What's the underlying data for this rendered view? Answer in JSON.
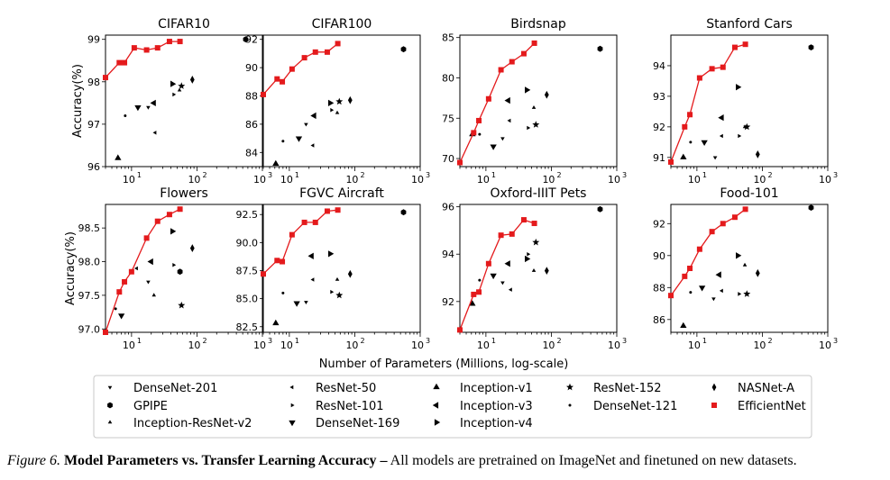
{
  "figure": {
    "ylabel": "Accuracy(%)",
    "xlabel": "Number of Parameters (Millions, log-scale)",
    "x_ticks": [
      "10",
      "10",
      "10"
    ],
    "x_tick_exponents": [
      "1",
      "2",
      "3"
    ],
    "colors": {
      "efficientnet": "#e41a1c",
      "others": "#000000"
    }
  },
  "caption": {
    "label": "Figure 6.",
    "title": "Model Parameters vs. Transfer Learning Accuracy –",
    "text": "All models are pretrained on ImageNet and finetuned on new datasets."
  },
  "legend": [
    {
      "name": "DenseNet-201",
      "marker": "tri-down-small"
    },
    {
      "name": "ResNet-50",
      "marker": "tri-left-small"
    },
    {
      "name": "Inception-v1",
      "marker": "tri-up"
    },
    {
      "name": "ResNet-152",
      "marker": "star"
    },
    {
      "name": "NASNet-A",
      "marker": "diamond-thin"
    },
    {
      "name": "GPIPE",
      "marker": "hexagon"
    },
    {
      "name": "ResNet-101",
      "marker": "tri-right-small"
    },
    {
      "name": "Inception-v3",
      "marker": "tri-left"
    },
    {
      "name": "DenseNet-121",
      "marker": "dot"
    },
    {
      "name": "EfficientNet",
      "marker": "square"
    },
    {
      "name": "Inception-ResNet-v2",
      "marker": "tri-up-small"
    },
    {
      "name": "DenseNet-169",
      "marker": "tri-down"
    },
    {
      "name": "Inception-v4",
      "marker": "tri-right"
    }
  ],
  "chart_data": [
    {
      "type": "scatter",
      "title": "CIFAR10",
      "xscale": "log",
      "xlim": [
        4,
        1000
      ],
      "ylim": [
        96,
        99.1
      ],
      "yticks": [
        {
          "v": 96,
          "label": "96"
        },
        {
          "v": 97,
          "label": "97"
        },
        {
          "v": 98,
          "label": "98"
        },
        {
          "v": 99,
          "label": "99"
        }
      ],
      "efficientnet": [
        [
          4,
          98.1
        ],
        [
          6.5,
          98.45
        ],
        [
          7.8,
          98.45
        ],
        [
          11,
          98.8
        ],
        [
          17,
          98.75
        ],
        [
          25,
          98.8
        ],
        [
          38,
          98.95
        ],
        [
          55,
          98.95
        ]
      ],
      "points": [
        {
          "model": "GPIPE",
          "x": 556,
          "y": 99.0
        },
        {
          "model": "NASNet-A",
          "x": 85,
          "y": 98.05
        },
        {
          "model": "ResNet-152",
          "x": 58,
          "y": 97.9
        },
        {
          "model": "Inception-v4",
          "x": 42,
          "y": 97.95
        },
        {
          "model": "Inception-v3",
          "x": 22,
          "y": 97.5
        },
        {
          "model": "DenseNet-169",
          "x": 12.5,
          "y": 97.4
        },
        {
          "model": "ResNet-101",
          "x": 44,
          "y": 97.7
        },
        {
          "model": "Inception-ResNet-v2",
          "x": 54,
          "y": 97.8
        },
        {
          "model": "DenseNet-121",
          "x": 8,
          "y": 97.2
        },
        {
          "model": "ResNet-50",
          "x": 23,
          "y": 96.8
        },
        {
          "model": "DenseNet-201",
          "x": 18,
          "y": 97.4
        },
        {
          "model": "Inception-v1",
          "x": 6.2,
          "y": 96.2
        }
      ]
    },
    {
      "type": "scatter",
      "title": "CIFAR100",
      "xscale": "log",
      "xlim": [
        4,
        1000
      ],
      "ylim": [
        83,
        92.3
      ],
      "yticks": [
        {
          "v": 84,
          "label": "84"
        },
        {
          "v": 86,
          "label": "86"
        },
        {
          "v": 88,
          "label": "88"
        },
        {
          "v": 90,
          "label": "90"
        },
        {
          "v": 92,
          "label": "92"
        }
      ],
      "efficientnet": [
        [
          4,
          88.1
        ],
        [
          6.5,
          89.2
        ],
        [
          7.8,
          89.0
        ],
        [
          11,
          89.9
        ],
        [
          17,
          90.7
        ],
        [
          25,
          91.1
        ],
        [
          38,
          91.1
        ],
        [
          55,
          91.7
        ]
      ],
      "points": [
        {
          "model": "GPIPE",
          "x": 556,
          "y": 91.3
        },
        {
          "model": "NASNet-A",
          "x": 85,
          "y": 87.7
        },
        {
          "model": "ResNet-152",
          "x": 58,
          "y": 87.6
        },
        {
          "model": "Inception-v4",
          "x": 42,
          "y": 87.5
        },
        {
          "model": "Inception-v3",
          "x": 24,
          "y": 86.6
        },
        {
          "model": "DenseNet-169",
          "x": 14,
          "y": 85.0
        },
        {
          "model": "ResNet-101",
          "x": 44,
          "y": 87.0
        },
        {
          "model": "Inception-ResNet-v2",
          "x": 54,
          "y": 86.8
        },
        {
          "model": "DenseNet-121",
          "x": 8,
          "y": 84.8
        },
        {
          "model": "ResNet-50",
          "x": 23,
          "y": 84.5
        },
        {
          "model": "DenseNet-201",
          "x": 18,
          "y": 86.0
        },
        {
          "model": "Inception-v1",
          "x": 6.2,
          "y": 83.2
        }
      ]
    },
    {
      "type": "scatter",
      "title": "Birdsnap",
      "xscale": "log",
      "xlim": [
        4,
        1000
      ],
      "ylim": [
        69,
        85.3
      ],
      "yticks": [
        {
          "v": 70,
          "label": "70"
        },
        {
          "v": 75,
          "label": "75"
        },
        {
          "v": 80,
          "label": "80"
        },
        {
          "v": 85,
          "label": "85"
        }
      ],
      "efficientnet": [
        [
          4,
          69.5
        ],
        [
          6.5,
          73.2
        ],
        [
          7.8,
          74.7
        ],
        [
          11,
          77.4
        ],
        [
          17,
          81.0
        ],
        [
          25,
          82.0
        ],
        [
          38,
          83.0
        ],
        [
          55,
          84.3
        ]
      ],
      "points": [
        {
          "model": "GPIPE",
          "x": 556,
          "y": 83.6
        },
        {
          "model": "NASNet-A",
          "x": 85,
          "y": 77.9
        },
        {
          "model": "ResNet-152",
          "x": 58,
          "y": 74.2
        },
        {
          "model": "Inception-v4",
          "x": 42,
          "y": 78.5
        },
        {
          "model": "Inception-v3",
          "x": 22,
          "y": 77.2
        },
        {
          "model": "DenseNet-169",
          "x": 13,
          "y": 71.5
        },
        {
          "model": "ResNet-101",
          "x": 44,
          "y": 73.8
        },
        {
          "model": "Inception-ResNet-v2",
          "x": 54,
          "y": 76.3
        },
        {
          "model": "DenseNet-121",
          "x": 8,
          "y": 73.0
        },
        {
          "model": "ResNet-50",
          "x": 23,
          "y": 74.7
        },
        {
          "model": "DenseNet-201",
          "x": 18,
          "y": 72.5
        },
        {
          "model": "Inception-v1",
          "x": 6.2,
          "y": 73.0
        }
      ]
    },
    {
      "type": "scatter",
      "title": "Stanford Cars",
      "xscale": "log",
      "xlim": [
        4,
        1000
      ],
      "ylim": [
        90.7,
        95.0
      ],
      "yticks": [
        {
          "v": 91,
          "label": "91"
        },
        {
          "v": 92,
          "label": "92"
        },
        {
          "v": 93,
          "label": "93"
        },
        {
          "v": 94,
          "label": "94"
        }
      ],
      "efficientnet": [
        [
          4,
          90.85
        ],
        [
          6.5,
          92.0
        ],
        [
          7.8,
          92.4
        ],
        [
          11,
          93.6
        ],
        [
          17,
          93.9
        ],
        [
          25,
          93.95
        ],
        [
          38,
          94.6
        ],
        [
          55,
          94.7
        ]
      ],
      "points": [
        {
          "model": "GPIPE",
          "x": 556,
          "y": 94.6
        },
        {
          "model": "NASNet-A",
          "x": 85,
          "y": 91.1
        },
        {
          "model": "ResNet-152",
          "x": 58,
          "y": 92.0
        },
        {
          "model": "Inception-v4",
          "x": 42,
          "y": 93.3
        },
        {
          "model": "Inception-v3",
          "x": 24,
          "y": 92.3
        },
        {
          "model": "DenseNet-169",
          "x": 13,
          "y": 91.5
        },
        {
          "model": "ResNet-101",
          "x": 44,
          "y": 91.7
        },
        {
          "model": "Inception-ResNet-v2",
          "x": 54,
          "y": 92.0
        },
        {
          "model": "DenseNet-121",
          "x": 8,
          "y": 91.5
        },
        {
          "model": "ResNet-50",
          "x": 24,
          "y": 91.7
        },
        {
          "model": "DenseNet-201",
          "x": 19,
          "y": 91.0
        },
        {
          "model": "Inception-v1",
          "x": 6.2,
          "y": 91.0
        }
      ]
    },
    {
      "type": "scatter",
      "title": "Flowers",
      "xscale": "log",
      "xlim": [
        4,
        1000
      ],
      "ylim": [
        96.95,
        98.85
      ],
      "yticks": [
        {
          "v": 97.0,
          "label": "97.0"
        },
        {
          "v": 97.5,
          "label": "97.5"
        },
        {
          "v": 98.0,
          "label": "98.0"
        },
        {
          "v": 98.5,
          "label": "98.5"
        }
      ],
      "efficientnet": [
        [
          4,
          96.95
        ],
        [
          6.5,
          97.55
        ],
        [
          7.8,
          97.7
        ],
        [
          10,
          97.85
        ],
        [
          17,
          98.35
        ],
        [
          25,
          98.6
        ],
        [
          38,
          98.7
        ],
        [
          55,
          98.78
        ]
      ],
      "points": [
        {
          "model": "NASNet-A",
          "x": 85,
          "y": 98.2
        },
        {
          "model": "Inception-v4",
          "x": 42,
          "y": 98.45
        },
        {
          "model": "Inception-v3",
          "x": 20,
          "y": 98.0
        },
        {
          "model": "GPIPE",
          "x": 55,
          "y": 97.85
        },
        {
          "model": "DenseNet-169",
          "x": 7,
          "y": 97.2
        },
        {
          "model": "ResNet-101",
          "x": 44,
          "y": 97.95
        },
        {
          "model": "ResNet-152",
          "x": 58,
          "y": 97.35
        },
        {
          "model": "DenseNet-121",
          "x": 5.7,
          "y": 97.3
        },
        {
          "model": "ResNet-50",
          "x": 12,
          "y": 97.9
        },
        {
          "model": "Inception-ResNet-v2",
          "x": 22,
          "y": 97.5
        },
        {
          "model": "DenseNet-201",
          "x": 18,
          "y": 97.7
        }
      ]
    },
    {
      "type": "scatter",
      "title": "FGVC Aircraft",
      "xscale": "log",
      "xlim": [
        4,
        1000
      ],
      "ylim": [
        82.0,
        93.4
      ],
      "yticks": [
        {
          "v": 82.5,
          "label": "82.5"
        },
        {
          "v": 85.0,
          "label": "85.0"
        },
        {
          "v": 87.5,
          "label": "87.5"
        },
        {
          "v": 90.0,
          "label": "90.0"
        },
        {
          "v": 92.5,
          "label": "92.5"
        }
      ],
      "efficientnet": [
        [
          4,
          87.2
        ],
        [
          6.5,
          88.4
        ],
        [
          7.8,
          88.3
        ],
        [
          11,
          90.7
        ],
        [
          17,
          91.8
        ],
        [
          25,
          91.8
        ],
        [
          38,
          92.8
        ],
        [
          55,
          92.9
        ]
      ],
      "points": [
        {
          "model": "GPIPE",
          "x": 556,
          "y": 92.7
        },
        {
          "model": "NASNet-A",
          "x": 85,
          "y": 87.2
        },
        {
          "model": "ResNet-152",
          "x": 58,
          "y": 85.3
        },
        {
          "model": "Inception-v4",
          "x": 42,
          "y": 89.0
        },
        {
          "model": "Inception-v3",
          "x": 22,
          "y": 88.8
        },
        {
          "model": "DenseNet-169",
          "x": 13,
          "y": 84.6
        },
        {
          "model": "ResNet-101",
          "x": 44,
          "y": 85.6
        },
        {
          "model": "Inception-ResNet-v2",
          "x": 54,
          "y": 86.7
        },
        {
          "model": "DenseNet-121",
          "x": 8,
          "y": 85.5
        },
        {
          "model": "ResNet-50",
          "x": 23,
          "y": 86.7
        },
        {
          "model": "DenseNet-201",
          "x": 18,
          "y": 84.7
        },
        {
          "model": "Inception-v1",
          "x": 6.2,
          "y": 82.8
        }
      ]
    },
    {
      "type": "scatter",
      "title": "Oxford-IIIT Pets",
      "xscale": "log",
      "xlim": [
        4,
        1000
      ],
      "ylim": [
        90.7,
        96.1
      ],
      "yticks": [
        {
          "v": 92,
          "label": "92"
        },
        {
          "v": 94,
          "label": "94"
        },
        {
          "v": 96,
          "label": "96"
        }
      ],
      "efficientnet": [
        [
          4,
          90.8
        ],
        [
          6.5,
          92.3
        ],
        [
          7.8,
          92.4
        ],
        [
          11,
          93.6
        ],
        [
          17,
          94.8
        ],
        [
          25,
          94.85
        ],
        [
          38,
          95.45
        ],
        [
          55,
          95.3
        ]
      ],
      "points": [
        {
          "model": "GPIPE",
          "x": 556,
          "y": 95.9
        },
        {
          "model": "NASNet-A",
          "x": 85,
          "y": 93.3
        },
        {
          "model": "ResNet-152",
          "x": 58,
          "y": 94.5
        },
        {
          "model": "Inception-v4",
          "x": 42,
          "y": 93.8
        },
        {
          "model": "Inception-v3",
          "x": 22,
          "y": 93.6
        },
        {
          "model": "DenseNet-169",
          "x": 13,
          "y": 93.1
        },
        {
          "model": "ResNet-101",
          "x": 44,
          "y": 94.0
        },
        {
          "model": "Inception-ResNet-v2",
          "x": 54,
          "y": 93.3
        },
        {
          "model": "DenseNet-121",
          "x": 8,
          "y": 92.9
        },
        {
          "model": "ResNet-50",
          "x": 24,
          "y": 92.5
        },
        {
          "model": "DenseNet-201",
          "x": 18,
          "y": 92.8
        },
        {
          "model": "Inception-v1",
          "x": 6.2,
          "y": 91.9
        }
      ]
    },
    {
      "type": "scatter",
      "title": "Food-101",
      "xscale": "log",
      "xlim": [
        4,
        1000
      ],
      "ylim": [
        85.2,
        93.2
      ],
      "yticks": [
        {
          "v": 86,
          "label": "86"
        },
        {
          "v": 88,
          "label": "88"
        },
        {
          "v": 90,
          "label": "90"
        },
        {
          "v": 92,
          "label": "92"
        }
      ],
      "efficientnet": [
        [
          4,
          87.5
        ],
        [
          6.5,
          88.7
        ],
        [
          7.8,
          89.2
        ],
        [
          11,
          90.4
        ],
        [
          17,
          91.5
        ],
        [
          25,
          92.0
        ],
        [
          38,
          92.4
        ],
        [
          55,
          92.9
        ]
      ],
      "points": [
        {
          "model": "GPIPE",
          "x": 556,
          "y": 93.0
        },
        {
          "model": "NASNet-A",
          "x": 85,
          "y": 88.9
        },
        {
          "model": "ResNet-152",
          "x": 58,
          "y": 87.6
        },
        {
          "model": "Inception-v4",
          "x": 42,
          "y": 90.0
        },
        {
          "model": "Inception-v3",
          "x": 22,
          "y": 88.8
        },
        {
          "model": "DenseNet-169",
          "x": 12,
          "y": 88.0
        },
        {
          "model": "ResNet-101",
          "x": 44,
          "y": 87.6
        },
        {
          "model": "Inception-ResNet-v2",
          "x": 54,
          "y": 89.4
        },
        {
          "model": "DenseNet-121",
          "x": 8,
          "y": 87.7
        },
        {
          "model": "ResNet-50",
          "x": 24,
          "y": 87.8
        },
        {
          "model": "DenseNet-201",
          "x": 18,
          "y": 87.3
        },
        {
          "model": "Inception-v1",
          "x": 6.2,
          "y": 85.6
        }
      ]
    }
  ]
}
